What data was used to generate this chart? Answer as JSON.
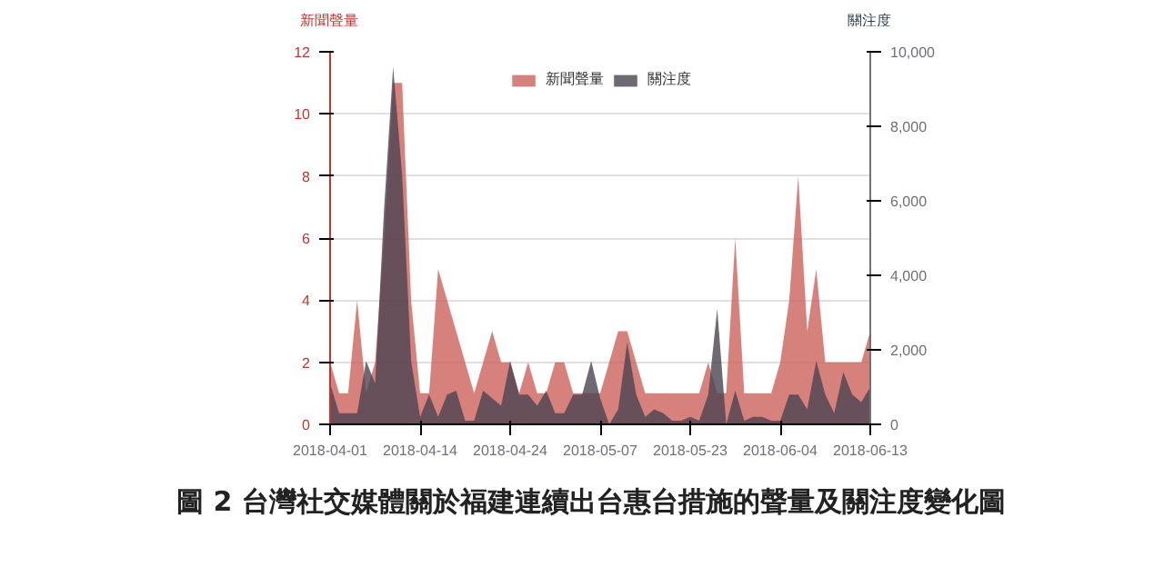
{
  "chart_data": {
    "type": "area",
    "title": "圖 2  台灣社交媒體關於福建連續出台惠台措施的聲量及關注度變化圖",
    "ylabel": "新聞聲量",
    "y2label": "關注度",
    "categories": [
      "2018-04-01",
      null,
      null,
      null,
      null,
      null,
      null,
      null,
      null,
      null,
      "2018-04-14",
      null,
      null,
      null,
      null,
      null,
      null,
      null,
      null,
      null,
      "2018-04-24",
      null,
      null,
      null,
      null,
      null,
      null,
      null,
      null,
      null,
      "2018-05-07",
      null,
      null,
      null,
      null,
      null,
      null,
      null,
      null,
      null,
      "2018-05-23",
      null,
      null,
      null,
      null,
      null,
      null,
      null,
      null,
      null,
      "2018-06-04",
      null,
      null,
      null,
      null,
      null,
      null,
      null,
      null,
      null,
      "2018-06-13"
    ],
    "series": [
      {
        "name": "新聞聲量",
        "color": "#cd625c",
        "values": [
          2,
          1,
          1,
          4,
          1,
          2,
          6,
          11,
          11,
          4,
          1,
          1,
          5,
          4,
          3,
          2,
          1,
          2,
          3,
          2,
          2,
          1,
          2,
          1,
          1,
          2,
          2,
          1,
          1,
          1,
          1,
          2,
          3,
          3,
          2,
          1,
          1,
          1,
          1,
          1,
          1,
          1,
          2,
          1,
          1,
          6,
          1,
          1,
          1,
          1,
          2,
          4,
          8,
          3,
          5,
          2,
          2,
          2,
          2,
          2,
          3
        ]
      },
      {
        "name": "關注度",
        "color": "#4b4450",
        "axis": "y2",
        "values": [
          1100,
          300,
          300,
          300,
          1700,
          1100,
          5800,
          9600,
          6700,
          1700,
          200,
          800,
          200,
          800,
          900,
          100,
          100,
          900,
          700,
          500,
          1700,
          800,
          800,
          500,
          900,
          300,
          300,
          800,
          800,
          1700,
          700,
          0,
          400,
          2200,
          800,
          200,
          400,
          300,
          100,
          100,
          200,
          100,
          800,
          3100,
          0,
          900,
          100,
          200,
          200,
          100,
          100,
          800,
          800,
          400,
          1700,
          800,
          300,
          1400,
          800,
          600,
          1000
        ]
      }
    ],
    "ylim": [
      0,
      12
    ],
    "yticks": [
      0,
      2,
      4,
      6,
      8,
      10,
      12
    ],
    "y2lim": [
      0,
      10000
    ],
    "y2ticks": [
      {
        "value": 0,
        "label": "0"
      },
      {
        "value": 2000,
        "label": "2,000"
      },
      {
        "value": 4000,
        "label": "4,000"
      },
      {
        "value": 6000,
        "label": "6,000"
      },
      {
        "value": 8000,
        "label": "8,000"
      },
      {
        "value": 10000,
        "label": "10,000"
      }
    ],
    "grid": "y",
    "legend": "top",
    "marker": "none"
  }
}
